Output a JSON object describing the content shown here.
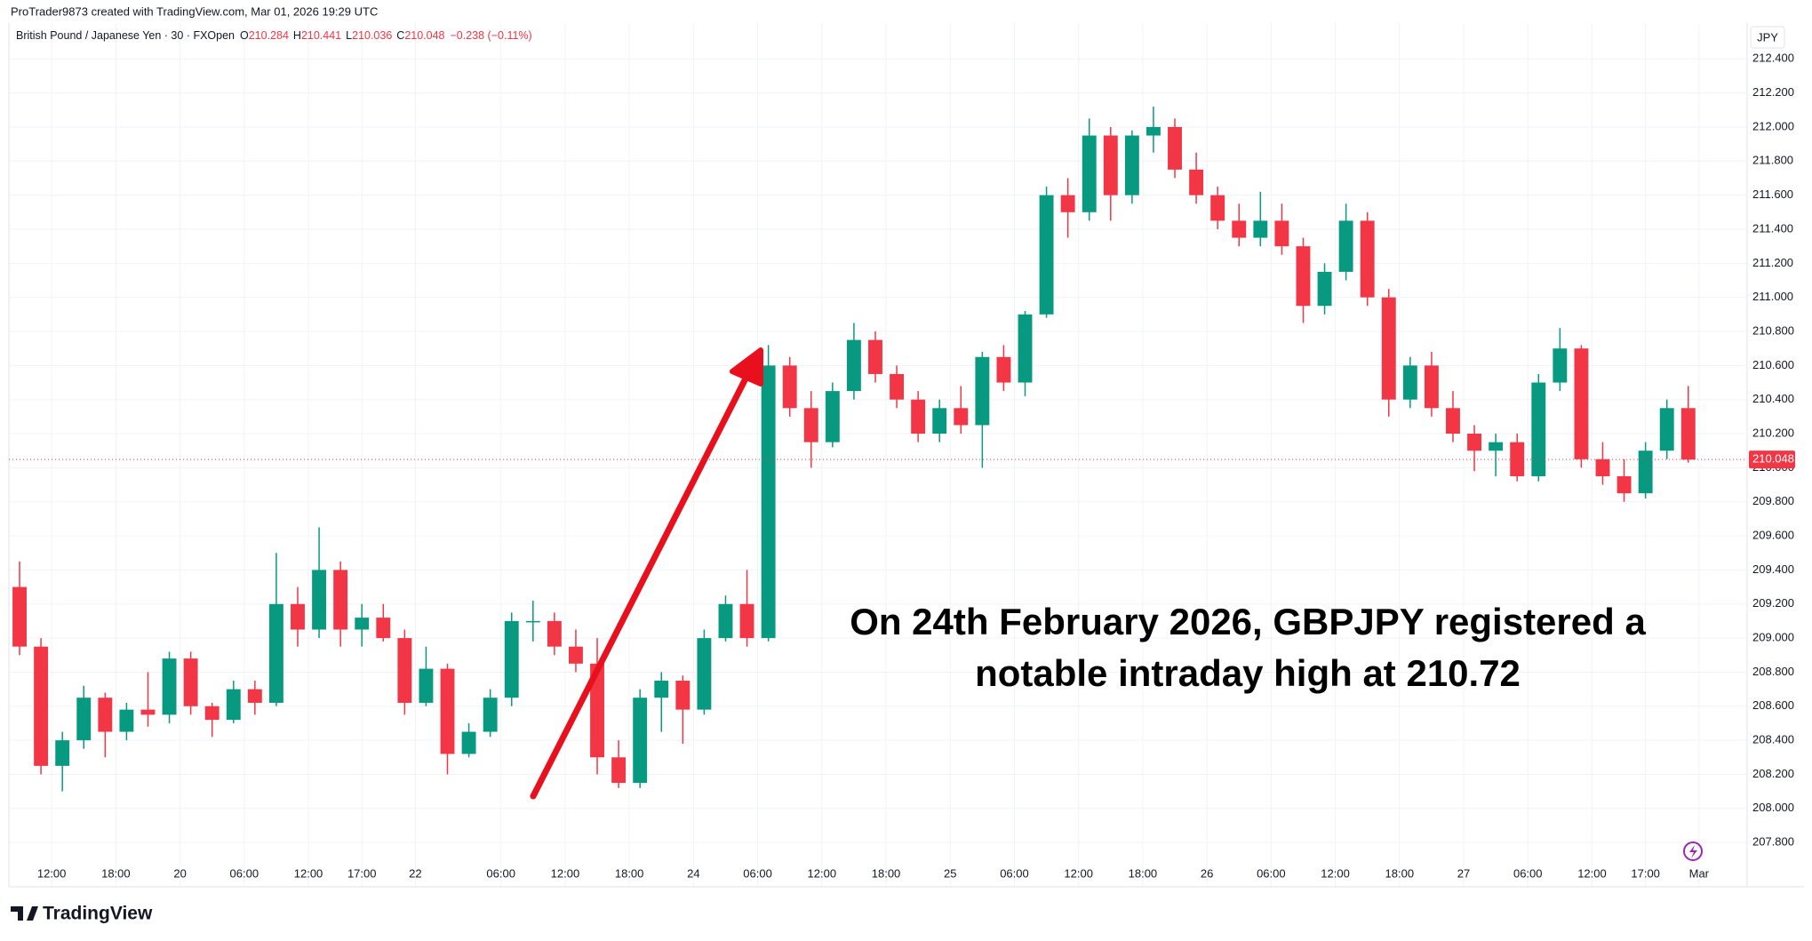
{
  "header": {
    "credit": "ProTrader9873 created with TradingView.com, Mar 01, 2026 19:29 UTC",
    "symbol": "British Pound / Japanese Yen · 30 · FXOpen",
    "ohlc": [
      {
        "label": "O",
        "value": 210.284
      },
      {
        "label": "H",
        "value": 210.441
      },
      {
        "label": "L",
        "value": 210.036
      },
      {
        "label": "C",
        "value": 210.048
      }
    ],
    "change": "−0.238 (−0.11%)"
  },
  "footer": {
    "brand": "TradingView"
  },
  "chart_data": {
    "type": "candlestick",
    "currency": "JPY",
    "up_color": "#089981",
    "down_color": "#f23645",
    "grid": true,
    "annotation": [
      "On 24th February 2026, GBPJPY registered a",
      "notable intraday high at 210.72"
    ],
    "last_price": 210.048,
    "xlim": [
      0,
      325
    ],
    "ylim": [
      207.54,
      212.61
    ],
    "xticks": [
      {
        "value": 8,
        "label": "12:00"
      },
      {
        "value": 20,
        "label": "18:00"
      },
      {
        "value": 32,
        "label": "20"
      },
      {
        "value": 44,
        "label": "06:00"
      },
      {
        "value": 56,
        "label": "12:00"
      },
      {
        "value": 66,
        "label": "17:00"
      },
      {
        "value": 76,
        "label": "22"
      },
      {
        "value": 92,
        "label": "06:00"
      },
      {
        "value": 104,
        "label": "12:00"
      },
      {
        "value": 116,
        "label": "18:00"
      },
      {
        "value": 128,
        "label": "24"
      },
      {
        "value": 140,
        "label": "06:00"
      },
      {
        "value": 152,
        "label": "12:00"
      },
      {
        "value": 164,
        "label": "18:00"
      },
      {
        "value": 176,
        "label": "25"
      },
      {
        "value": 188,
        "label": "06:00"
      },
      {
        "value": 200,
        "label": "12:00"
      },
      {
        "value": 212,
        "label": "18:00"
      },
      {
        "value": 224,
        "label": "26"
      },
      {
        "value": 236,
        "label": "06:00"
      },
      {
        "value": 248,
        "label": "12:00"
      },
      {
        "value": 260,
        "label": "18:00"
      },
      {
        "value": 272,
        "label": "27"
      },
      {
        "value": 284,
        "label": "06:00"
      },
      {
        "value": 296,
        "label": "12:00"
      },
      {
        "value": 306,
        "label": "17:00"
      },
      {
        "value": 316,
        "label": "Mar"
      }
    ],
    "yticks": [
      {
        "value": 212.4,
        "label": "212.400"
      },
      {
        "value": 212.2,
        "label": "212.200"
      },
      {
        "value": 212.0,
        "label": "212.000"
      },
      {
        "value": 211.8,
        "label": "211.800"
      },
      {
        "value": 211.6,
        "label": "211.600"
      },
      {
        "value": 211.4,
        "label": "211.400"
      },
      {
        "value": 211.2,
        "label": "211.200"
      },
      {
        "value": 211.0,
        "label": "211.000"
      },
      {
        "value": 210.8,
        "label": "210.800"
      },
      {
        "value": 210.6,
        "label": "210.600"
      },
      {
        "value": 210.4,
        "label": "210.400"
      },
      {
        "value": 210.2,
        "label": "210.200"
      },
      {
        "value": 210.0,
        "label": "210.000"
      },
      {
        "value": 209.8,
        "label": "209.800"
      },
      {
        "value": 209.6,
        "label": "209.600"
      },
      {
        "value": 209.4,
        "label": "209.400"
      },
      {
        "value": 209.2,
        "label": "209.200"
      },
      {
        "value": 209.0,
        "label": "209.000"
      },
      {
        "value": 208.8,
        "label": "208.800"
      },
      {
        "value": 208.6,
        "label": "208.600"
      },
      {
        "value": 208.4,
        "label": "208.400"
      },
      {
        "value": 208.2,
        "label": "208.200"
      },
      {
        "value": 208.0,
        "label": "208.000"
      },
      {
        "value": 207.8,
        "label": "207.800"
      }
    ],
    "x": [
      2,
      6,
      10,
      14,
      18,
      22,
      26,
      30,
      34,
      38,
      42,
      46,
      50,
      54,
      58,
      62,
      66,
      70,
      74,
      78,
      82,
      86,
      90,
      94,
      98,
      102,
      106,
      110,
      114,
      118,
      122,
      126,
      130,
      134,
      138,
      142,
      146,
      150,
      154,
      158,
      162,
      166,
      170,
      174,
      178,
      182,
      186,
      190,
      194,
      198,
      202,
      206,
      210,
      214,
      218,
      222,
      226,
      230,
      234,
      238,
      242,
      246,
      250,
      254,
      258,
      262,
      266,
      270,
      274,
      278,
      282,
      286,
      290,
      294,
      298,
      302,
      306,
      310,
      314
    ],
    "open": [
      209.3,
      208.95,
      208.25,
      208.4,
      208.65,
      208.45,
      208.58,
      208.55,
      208.88,
      208.6,
      208.52,
      208.7,
      208.62,
      209.2,
      209.05,
      209.4,
      209.05,
      209.12,
      209.0,
      208.62,
      208.82,
      208.32,
      208.45,
      208.65,
      209.1,
      209.1,
      208.95,
      208.85,
      208.3,
      208.15,
      208.65,
      208.75,
      208.58,
      209.0,
      209.2,
      209.0,
      210.6,
      210.35,
      210.15,
      210.45,
      210.75,
      210.55,
      210.4,
      210.2,
      210.35,
      210.25,
      210.65,
      210.5,
      210.9,
      211.6,
      211.5,
      211.95,
      211.6,
      211.95,
      212.0,
      211.75,
      211.6,
      211.45,
      211.35,
      211.45,
      211.3,
      210.95,
      211.15,
      211.45,
      211.0,
      210.4,
      210.6,
      210.35,
      210.2,
      210.1,
      210.15,
      209.95,
      210.5,
      210.7,
      210.05,
      209.95,
      209.85,
      210.1,
      210.35
    ],
    "high": [
      209.45,
      209.0,
      208.45,
      208.72,
      208.68,
      208.62,
      208.8,
      208.92,
      208.92,
      208.62,
      208.75,
      208.75,
      209.5,
      209.3,
      209.65,
      209.45,
      209.2,
      209.2,
      209.05,
      208.95,
      208.85,
      208.5,
      208.7,
      209.15,
      209.22,
      209.15,
      209.05,
      209.0,
      208.4,
      208.7,
      208.8,
      208.78,
      209.05,
      209.25,
      209.4,
      210.72,
      210.65,
      210.45,
      210.5,
      210.85,
      210.8,
      210.6,
      210.45,
      210.4,
      210.48,
      210.68,
      210.72,
      210.92,
      211.65,
      211.7,
      212.05,
      212.0,
      211.98,
      212.12,
      212.05,
      211.85,
      211.65,
      211.55,
      211.62,
      211.55,
      211.35,
      211.2,
      211.55,
      211.5,
      211.05,
      210.65,
      210.68,
      210.45,
      210.25,
      210.2,
      210.2,
      210.55,
      210.82,
      210.72,
      210.15,
      210.05,
      210.15,
      210.4,
      210.48
    ],
    "low": [
      208.9,
      208.2,
      208.1,
      208.35,
      208.3,
      208.4,
      208.48,
      208.5,
      208.55,
      208.42,
      208.5,
      208.55,
      208.6,
      208.95,
      209.0,
      208.95,
      208.95,
      208.98,
      208.55,
      208.6,
      208.2,
      208.3,
      208.42,
      208.6,
      208.98,
      208.9,
      208.8,
      208.2,
      208.12,
      208.12,
      208.45,
      208.38,
      208.55,
      208.98,
      208.95,
      208.98,
      210.3,
      210.0,
      210.12,
      210.4,
      210.5,
      210.35,
      210.15,
      210.15,
      210.2,
      210.0,
      210.45,
      210.42,
      210.88,
      211.35,
      211.45,
      211.45,
      211.55,
      211.85,
      211.7,
      211.55,
      211.4,
      211.3,
      211.3,
      211.25,
      210.85,
      210.9,
      211.1,
      210.95,
      210.3,
      210.35,
      210.3,
      210.15,
      209.98,
      209.95,
      209.92,
      209.92,
      210.45,
      210.0,
      209.9,
      209.8,
      209.82,
      210.05,
      210.03
    ],
    "close": [
      208.95,
      208.25,
      208.4,
      208.65,
      208.45,
      208.58,
      208.55,
      208.88,
      208.6,
      208.52,
      208.7,
      208.62,
      209.2,
      209.05,
      209.4,
      209.05,
      209.12,
      209.0,
      208.62,
      208.82,
      208.32,
      208.45,
      208.65,
      209.1,
      209.1,
      208.95,
      208.85,
      208.3,
      208.15,
      208.65,
      208.75,
      208.58,
      209.0,
      209.2,
      209.0,
      210.6,
      210.35,
      210.15,
      210.45,
      210.75,
      210.55,
      210.4,
      210.2,
      210.35,
      210.25,
      210.65,
      210.5,
      210.9,
      211.6,
      211.5,
      211.95,
      211.6,
      211.95,
      212.0,
      211.75,
      211.6,
      211.45,
      211.35,
      211.45,
      211.3,
      210.95,
      211.15,
      211.45,
      211.0,
      210.4,
      210.6,
      210.35,
      210.2,
      210.1,
      210.15,
      209.95,
      210.5,
      210.7,
      210.05,
      209.95,
      209.85,
      210.1,
      210.35,
      210.048
    ]
  }
}
